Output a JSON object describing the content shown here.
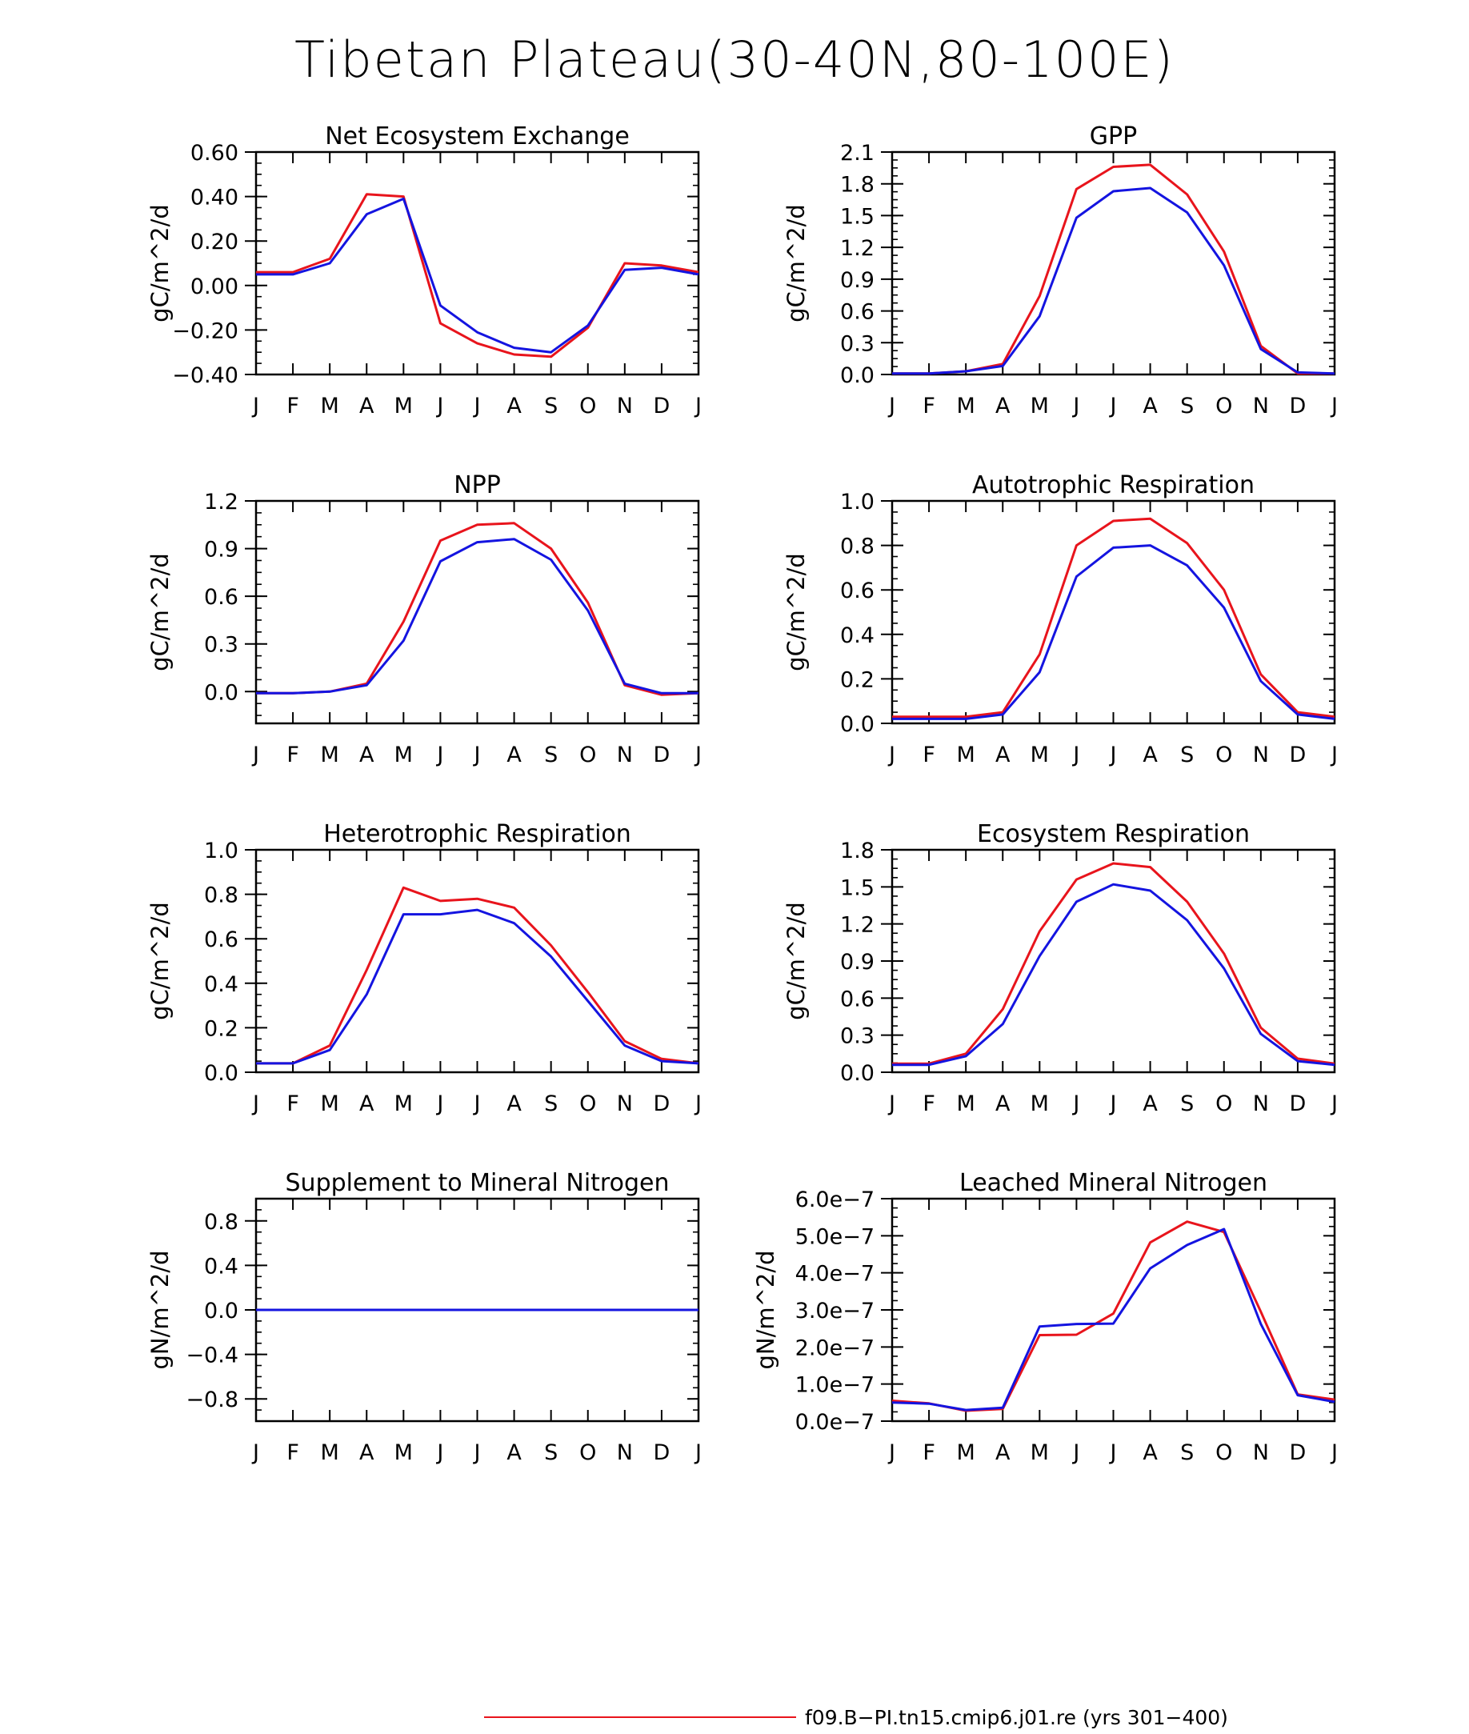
{
  "title": "Tibetan Plateau(30-40N,80-100E)",
  "colors": {
    "run_red": "#e8141c",
    "run_blue": "#1414e0",
    "axis": "#000000"
  },
  "month_labels": [
    "J",
    "F",
    "M",
    "A",
    "M",
    "J",
    "J",
    "A",
    "S",
    "O",
    "N",
    "D",
    "J"
  ],
  "legend": [
    {
      "label": "f09.B-PI.tn15.cmip6.j01.re (yrs 301-400)",
      "color": "#e8141c"
    }
  ],
  "chart_data": [
    {
      "type": "line",
      "title": "Net Ecosystem Exchange",
      "ylabel": "gC/m^2/d",
      "ylim": [
        -0.4,
        0.6
      ],
      "yticks": [
        -0.4,
        -0.2,
        0.0,
        0.2,
        0.4,
        0.6
      ],
      "ytick_labels": [
        "-0.40",
        "-0.20",
        "0.00",
        "0.20",
        "0.40",
        "0.60"
      ],
      "x": [
        "J",
        "F",
        "M",
        "A",
        "M",
        "J",
        "J",
        "A",
        "S",
        "O",
        "N",
        "D",
        "J"
      ],
      "series": [
        {
          "color": "#e8141c",
          "values": [
            0.06,
            0.06,
            0.12,
            0.41,
            0.4,
            -0.17,
            -0.26,
            -0.31,
            -0.32,
            -0.19,
            0.1,
            0.09,
            0.06
          ]
        },
        {
          "color": "#1414e0",
          "values": [
            0.05,
            0.05,
            0.1,
            0.32,
            0.39,
            -0.09,
            -0.21,
            -0.28,
            -0.3,
            -0.18,
            0.07,
            0.08,
            0.05
          ]
        }
      ]
    },
    {
      "type": "line",
      "title": "GPP",
      "ylabel": "gC/m^2/d",
      "ylim": [
        0.0,
        2.1
      ],
      "yticks": [
        0.0,
        0.3,
        0.6,
        0.9,
        1.2,
        1.5,
        1.8,
        2.1
      ],
      "ytick_labels": [
        "0.0",
        "0.3",
        "0.6",
        "0.9",
        "1.2",
        "1.5",
        "1.8",
        "2.1"
      ],
      "x": [
        "J",
        "F",
        "M",
        "A",
        "M",
        "J",
        "J",
        "A",
        "S",
        "O",
        "N",
        "D",
        "J"
      ],
      "series": [
        {
          "color": "#e8141c",
          "values": [
            0.01,
            0.01,
            0.03,
            0.1,
            0.74,
            1.75,
            1.96,
            1.98,
            1.7,
            1.16,
            0.27,
            0.01,
            0.01
          ]
        },
        {
          "color": "#1414e0",
          "values": [
            0.01,
            0.01,
            0.03,
            0.08,
            0.55,
            1.48,
            1.73,
            1.76,
            1.53,
            1.03,
            0.24,
            0.02,
            0.01
          ]
        }
      ]
    },
    {
      "type": "line",
      "title": "NPP",
      "ylabel": "gC/m^2/d",
      "ylim": [
        -0.2,
        1.2
      ],
      "yticks": [
        0.0,
        0.3,
        0.6,
        0.9,
        1.2
      ],
      "ytick_labels": [
        "0.0",
        "0.3",
        "0.6",
        "0.9",
        "1.2"
      ],
      "x": [
        "J",
        "F",
        "M",
        "A",
        "M",
        "J",
        "J",
        "A",
        "S",
        "O",
        "N",
        "D",
        "J"
      ],
      "series": [
        {
          "color": "#e8141c",
          "values": [
            -0.01,
            -0.01,
            0.0,
            0.05,
            0.44,
            0.95,
            1.05,
            1.06,
            0.9,
            0.56,
            0.04,
            -0.02,
            -0.01
          ]
        },
        {
          "color": "#1414e0",
          "values": [
            -0.01,
            -0.01,
            0.0,
            0.04,
            0.32,
            0.82,
            0.94,
            0.96,
            0.83,
            0.51,
            0.05,
            -0.01,
            -0.01
          ]
        }
      ]
    },
    {
      "type": "line",
      "title": "Autotrophic Respiration",
      "ylabel": "gC/m^2/d",
      "ylim": [
        0.0,
        1.0
      ],
      "yticks": [
        0.0,
        0.2,
        0.4,
        0.6,
        0.8,
        1.0
      ],
      "ytick_labels": [
        "0.0",
        "0.2",
        "0.4",
        "0.6",
        "0.8",
        "1.0"
      ],
      "x": [
        "J",
        "F",
        "M",
        "A",
        "M",
        "J",
        "J",
        "A",
        "S",
        "O",
        "N",
        "D",
        "J"
      ],
      "series": [
        {
          "color": "#e8141c",
          "values": [
            0.03,
            0.03,
            0.03,
            0.05,
            0.31,
            0.8,
            0.91,
            0.92,
            0.81,
            0.6,
            0.22,
            0.05,
            0.03
          ]
        },
        {
          "color": "#1414e0",
          "values": [
            0.02,
            0.02,
            0.02,
            0.04,
            0.23,
            0.66,
            0.79,
            0.8,
            0.71,
            0.52,
            0.19,
            0.04,
            0.02
          ]
        }
      ]
    },
    {
      "type": "line",
      "title": "Heterotrophic Respiration",
      "ylabel": "gC/m^2/d",
      "ylim": [
        0.0,
        1.0
      ],
      "yticks": [
        0.0,
        0.2,
        0.4,
        0.6,
        0.8,
        1.0
      ],
      "ytick_labels": [
        "0.0",
        "0.2",
        "0.4",
        "0.6",
        "0.8",
        "1.0"
      ],
      "x": [
        "J",
        "F",
        "M",
        "A",
        "M",
        "J",
        "J",
        "A",
        "S",
        "O",
        "N",
        "D",
        "J"
      ],
      "series": [
        {
          "color": "#e8141c",
          "values": [
            0.04,
            0.04,
            0.12,
            0.46,
            0.83,
            0.77,
            0.78,
            0.74,
            0.57,
            0.36,
            0.14,
            0.06,
            0.04
          ]
        },
        {
          "color": "#1414e0",
          "values": [
            0.04,
            0.04,
            0.1,
            0.35,
            0.71,
            0.71,
            0.73,
            0.67,
            0.52,
            0.32,
            0.12,
            0.05,
            0.04
          ]
        }
      ]
    },
    {
      "type": "line",
      "title": "Ecosystem Respiration",
      "ylabel": "gC/m^2/d",
      "ylim": [
        0.0,
        1.8
      ],
      "yticks": [
        0.0,
        0.3,
        0.6,
        0.9,
        1.2,
        1.5,
        1.8
      ],
      "ytick_labels": [
        "0.0",
        "0.3",
        "0.6",
        "0.9",
        "1.2",
        "1.5",
        "1.8"
      ],
      "x": [
        "J",
        "F",
        "M",
        "A",
        "M",
        "J",
        "J",
        "A",
        "S",
        "O",
        "N",
        "D",
        "J"
      ],
      "series": [
        {
          "color": "#e8141c",
          "values": [
            0.07,
            0.07,
            0.15,
            0.51,
            1.14,
            1.56,
            1.69,
            1.66,
            1.38,
            0.96,
            0.36,
            0.11,
            0.07
          ]
        },
        {
          "color": "#1414e0",
          "values": [
            0.06,
            0.06,
            0.13,
            0.39,
            0.94,
            1.38,
            1.52,
            1.47,
            1.23,
            0.84,
            0.31,
            0.09,
            0.06
          ]
        }
      ]
    },
    {
      "type": "line",
      "title": "Supplement to Mineral Nitrogen",
      "ylabel": "gN/m^2/d",
      "ylim": [
        -1.0,
        1.0
      ],
      "yticks": [
        -0.8,
        -0.4,
        0.0,
        0.4,
        0.8
      ],
      "ytick_labels": [
        "-0.8",
        "-0.4",
        "0.0",
        "0.4",
        "0.8"
      ],
      "x": [
        "J",
        "F",
        "M",
        "A",
        "M",
        "J",
        "J",
        "A",
        "S",
        "O",
        "N",
        "D",
        "J"
      ],
      "series": [
        {
          "color": "#e8141c",
          "values": [
            0,
            0,
            0,
            0,
            0,
            0,
            0,
            0,
            0,
            0,
            0,
            0,
            0
          ]
        },
        {
          "color": "#1414e0",
          "values": [
            0,
            0,
            0,
            0,
            0,
            0,
            0,
            0,
            0,
            0,
            0,
            0,
            0
          ]
        }
      ]
    },
    {
      "type": "line",
      "title": "Leached Mineral Nitrogen",
      "ylabel": "gN/m^2/d",
      "ylim": [
        0.0,
        6e-07
      ],
      "yticks": [
        0.0,
        1e-07,
        2e-07,
        3e-07,
        4e-07,
        5e-07,
        6e-07
      ],
      "ytick_labels": [
        "0.0e-7",
        "1.0e-7",
        "2.0e-7",
        "3.0e-7",
        "4.0e-7",
        "5.0e-7",
        "6.0e-7"
      ],
      "x": [
        "J",
        "F",
        "M",
        "A",
        "M",
        "J",
        "J",
        "A",
        "S",
        "O",
        "N",
        "D",
        "J"
      ],
      "series": [
        {
          "color": "#e8141c",
          "values": [
            5.5e-08,
            4.8e-08,
            2.8e-08,
            3.3e-08,
            2.32e-07,
            2.33e-07,
            2.9e-07,
            4.82e-07,
            5.38e-07,
            5.1e-07,
            2.95e-07,
            7.2e-08,
            5.8e-08
          ]
        },
        {
          "color": "#1414e0",
          "values": [
            5e-08,
            4.7e-08,
            3e-08,
            3.6e-08,
            2.55e-07,
            2.62e-07,
            2.63e-07,
            4.12e-07,
            4.75e-07,
            5.18e-07,
            2.62e-07,
            7e-08,
            5.2e-08
          ]
        }
      ]
    }
  ]
}
